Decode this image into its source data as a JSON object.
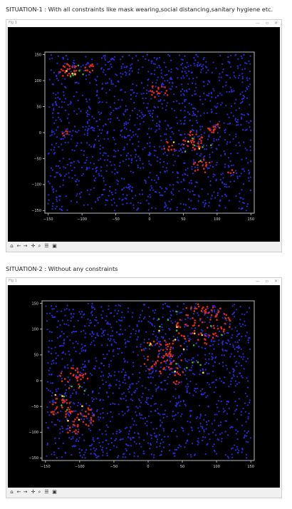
{
  "situations": [
    {
      "heading": "SITUATION-1 : With all constraints like mask wearing,social distancing,sanitary hygiene etc.",
      "window_title": "Fig 1",
      "chart_data": {
        "type": "scatter",
        "xlim": [
          -155,
          155
        ],
        "ylim": [
          -155,
          155
        ],
        "xticks": [
          -150,
          -100,
          -50,
          0,
          50,
          100,
          150
        ],
        "yticks": [
          150,
          100,
          50,
          0,
          -50,
          -100,
          -150
        ],
        "grid": false,
        "series_colors": {
          "healthy": "#2a2ae0",
          "infected": "#e02a1a",
          "recovered": "#2ec02e",
          "other": "#ffe040"
        },
        "clusters": [
          {
            "series": "infected",
            "x": -120,
            "y": 120,
            "r": 14,
            "n": 25
          },
          {
            "series": "infected",
            "x": -90,
            "y": 125,
            "r": 9,
            "n": 10
          },
          {
            "series": "infected",
            "x": 15,
            "y": 80,
            "r": 14,
            "n": 18
          },
          {
            "series": "infected",
            "x": -125,
            "y": 0,
            "r": 6,
            "n": 5
          },
          {
            "series": "infected",
            "x": 65,
            "y": -15,
            "r": 18,
            "n": 30
          },
          {
            "series": "infected",
            "x": 95,
            "y": 10,
            "r": 10,
            "n": 14
          },
          {
            "series": "infected",
            "x": 30,
            "y": -25,
            "r": 10,
            "n": 10
          },
          {
            "series": "infected",
            "x": 78,
            "y": -65,
            "r": 14,
            "n": 16
          },
          {
            "series": "infected",
            "x": 120,
            "y": -75,
            "r": 6,
            "n": 5
          },
          {
            "series": "recovered",
            "x": -110,
            "y": 115,
            "r": 15,
            "n": 5
          },
          {
            "series": "recovered",
            "x": 70,
            "y": -40,
            "r": 30,
            "n": 6
          },
          {
            "series": "other",
            "x": -115,
            "y": 110,
            "r": 12,
            "n": 3
          },
          {
            "series": "other",
            "x": 60,
            "y": -35,
            "r": 30,
            "n": 3
          }
        ],
        "healthy_count": 1400
      }
    },
    {
      "heading": "SITUATION-2 : Without any constraints",
      "window_title": "Fig 1",
      "chart_data": {
        "type": "scatter",
        "xlim": [
          -155,
          155
        ],
        "ylim": [
          -155,
          155
        ],
        "xticks": [
          -150,
          -100,
          -50,
          0,
          50,
          100,
          150
        ],
        "yticks": [
          150,
          100,
          50,
          0,
          -50,
          -100,
          -150
        ],
        "grid": false,
        "series_colors": {
          "healthy": "#2a2ae0",
          "infected": "#e02a1a",
          "recovered": "#2ec02e",
          "other": "#ffe040"
        },
        "clusters": [
          {
            "series": "infected",
            "x": 80,
            "y": 110,
            "r": 40,
            "n": 90
          },
          {
            "series": "infected",
            "x": 20,
            "y": 50,
            "r": 35,
            "n": 55
          },
          {
            "series": "infected",
            "x": 35,
            "y": 10,
            "r": 18,
            "n": 12
          },
          {
            "series": "infected",
            "x": -110,
            "y": 5,
            "r": 22,
            "n": 30
          },
          {
            "series": "infected",
            "x": -130,
            "y": -50,
            "r": 18,
            "n": 25
          },
          {
            "series": "infected",
            "x": -100,
            "y": -70,
            "r": 22,
            "n": 28
          },
          {
            "series": "infected",
            "x": -110,
            "y": -95,
            "r": 10,
            "n": 10
          },
          {
            "series": "recovered",
            "x": 55,
            "y": 80,
            "r": 60,
            "n": 14
          },
          {
            "series": "recovered",
            "x": -115,
            "y": -40,
            "r": 35,
            "n": 6
          },
          {
            "series": "other",
            "x": 40,
            "y": 60,
            "r": 60,
            "n": 9
          },
          {
            "series": "other",
            "x": -115,
            "y": -50,
            "r": 35,
            "n": 5
          }
        ],
        "healthy_count": 1400
      }
    }
  ],
  "toolbar": {
    "icons": [
      "home-icon",
      "back-arrow-icon",
      "forward-arrow-icon",
      "pan-icon",
      "zoom-icon",
      "configure-subplots-icon",
      "save-icon"
    ]
  }
}
